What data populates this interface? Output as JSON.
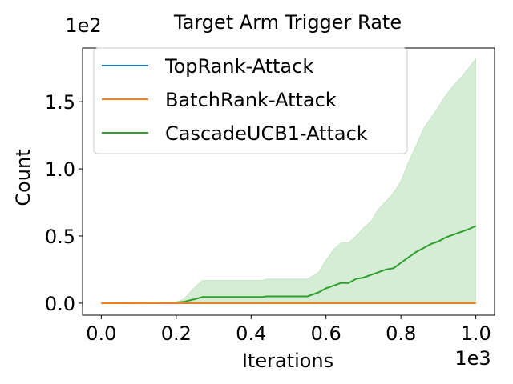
{
  "chart_data": {
    "type": "line",
    "title": "Target Arm Trigger Rate",
    "xlabel": "Iterations",
    "ylabel": "Count",
    "x_offset_text": "1e3",
    "y_offset_text": "1e2",
    "xlim": [
      -0.05,
      1.05
    ],
    "ylim": [
      -0.09,
      1.9
    ],
    "x_ticks": [
      0.0,
      0.2,
      0.4,
      0.6,
      0.8,
      1.0
    ],
    "x_tick_labels": [
      "0.0",
      "0.2",
      "0.4",
      "0.6",
      "0.8",
      "1.0"
    ],
    "y_ticks": [
      0.0,
      0.5,
      1.0,
      1.5
    ],
    "y_tick_labels": [
      "0.0",
      "0.5",
      "1.0",
      "1.5"
    ],
    "grid": false,
    "legend_position": "top-left",
    "series": [
      {
        "name": "TopRank-Attack",
        "color": "#1f77b4",
        "x": [
          0.0,
          1.0
        ],
        "y": [
          0.0,
          0.0
        ]
      },
      {
        "name": "BatchRank-Attack",
        "color": "#ff7f0e",
        "x": [
          0.0,
          0.2,
          0.4,
          0.6,
          0.8,
          1.0
        ],
        "y": [
          0.0,
          0.002,
          0.002,
          0.002,
          0.002,
          0.002
        ]
      },
      {
        "name": "CascadeUCB1-Attack",
        "color": "#2ca02c",
        "x": [
          0.0,
          0.06,
          0.13,
          0.2,
          0.22,
          0.25,
          0.27,
          0.3,
          0.35,
          0.43,
          0.44,
          0.5,
          0.55,
          0.58,
          0.6,
          0.62,
          0.64,
          0.66,
          0.68,
          0.7,
          0.72,
          0.74,
          0.76,
          0.78,
          0.8,
          0.82,
          0.84,
          0.86,
          0.88,
          0.9,
          0.92,
          0.94,
          0.96,
          0.98,
          1.0
        ],
        "y": [
          0.0,
          0.0,
          0.003,
          0.005,
          0.01,
          0.03,
          0.045,
          0.045,
          0.045,
          0.045,
          0.05,
          0.05,
          0.05,
          0.08,
          0.11,
          0.13,
          0.15,
          0.15,
          0.18,
          0.19,
          0.21,
          0.23,
          0.25,
          0.26,
          0.3,
          0.34,
          0.38,
          0.41,
          0.44,
          0.46,
          0.49,
          0.51,
          0.53,
          0.55,
          0.575
        ],
        "band_upper": [
          0.0,
          0.0,
          0.005,
          0.01,
          0.03,
          0.12,
          0.17,
          0.17,
          0.17,
          0.17,
          0.18,
          0.18,
          0.18,
          0.23,
          0.32,
          0.4,
          0.45,
          0.45,
          0.5,
          0.56,
          0.61,
          0.7,
          0.76,
          0.82,
          0.91,
          1.05,
          1.17,
          1.3,
          1.38,
          1.46,
          1.55,
          1.62,
          1.68,
          1.75,
          1.82
        ],
        "band_lower": [
          0.0,
          0.0,
          0.0,
          0.0,
          0.0,
          0.0,
          0.0,
          0.0,
          0.0,
          0.0,
          0.0,
          0.0,
          0.0,
          0.0,
          0.0,
          0.0,
          0.0,
          0.0,
          0.0,
          0.0,
          0.0,
          0.0,
          0.0,
          0.0,
          0.0,
          0.0,
          0.0,
          0.0,
          0.0,
          0.0,
          0.0,
          0.0,
          0.0,
          0.0,
          0.0
        ]
      }
    ]
  }
}
